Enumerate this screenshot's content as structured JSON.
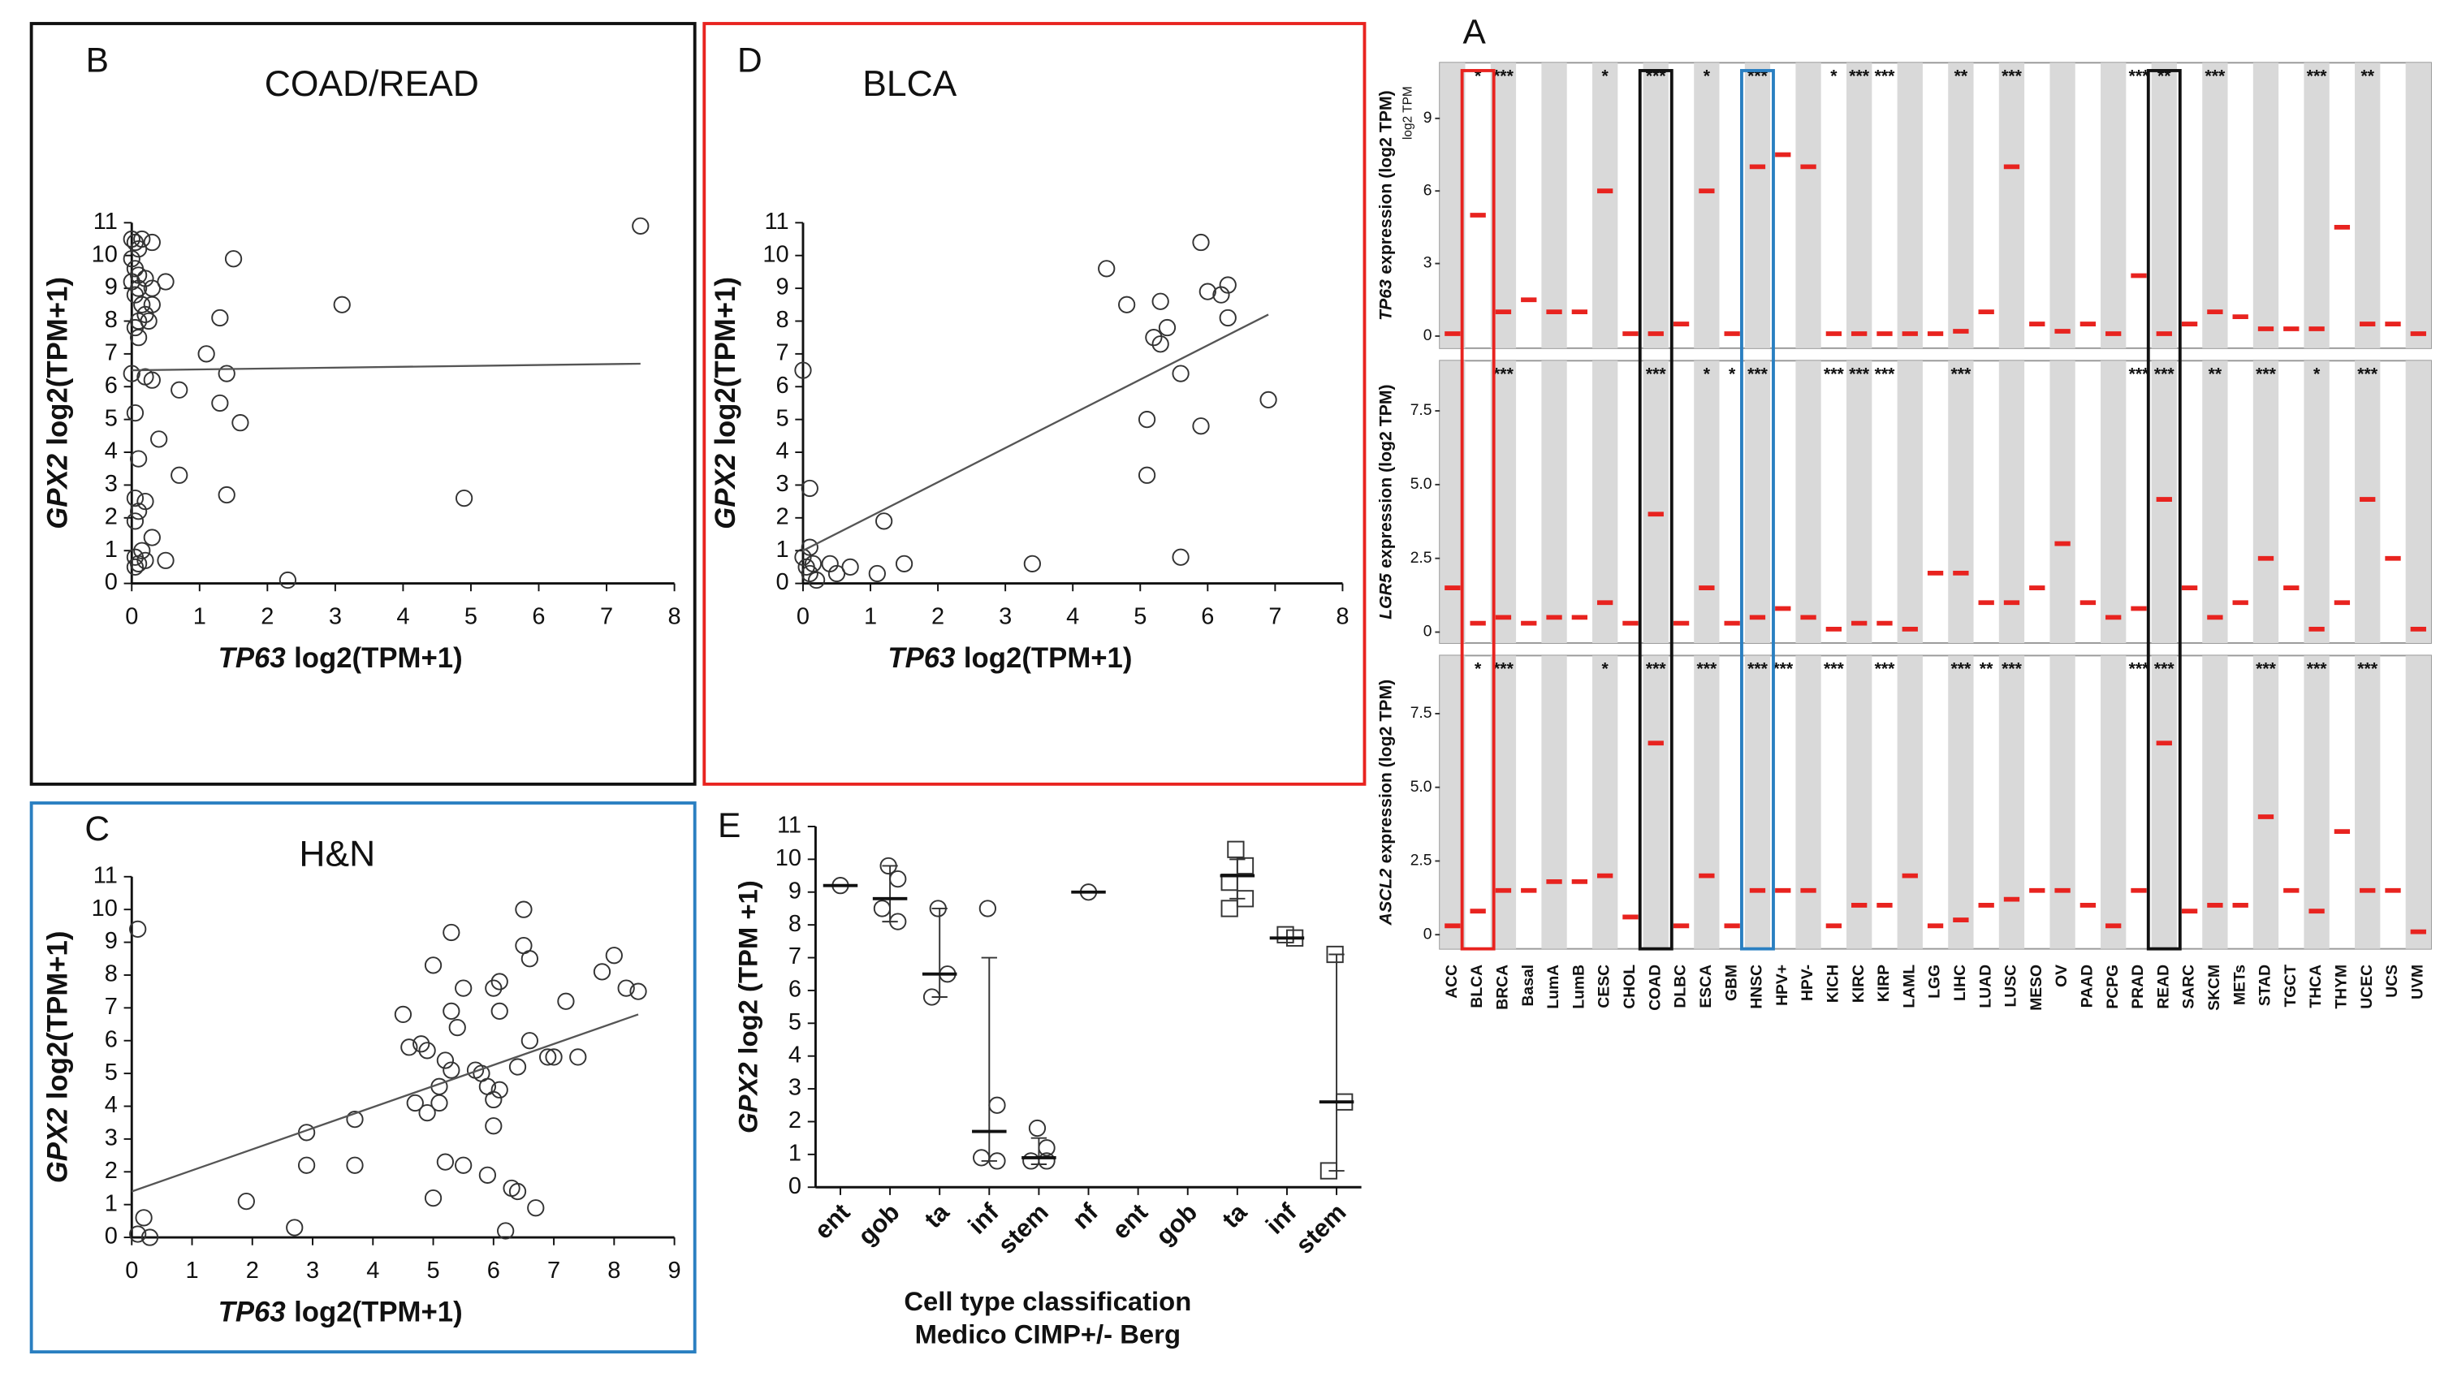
{
  "chart_data": [
    {
      "type": "box",
      "panel": "A",
      "categories": [
        "ACC",
        "BLCA",
        "BRCA",
        "Basal",
        "LumA",
        "LumB",
        "CESC",
        "CHOL",
        "COAD",
        "DLBC",
        "ESCA",
        "GBM",
        "HNSC",
        "HPV+",
        "HPV-",
        "KICH",
        "KIRC",
        "KIRP",
        "LAML",
        "LGG",
        "LIHC",
        "LUAD",
        "LUSC",
        "MESO",
        "OV",
        "PAAD",
        "PCPG",
        "PRAD",
        "READ",
        "SARC",
        "SKCM",
        "METs",
        "STAD",
        "TGCT",
        "THCA",
        "THYM",
        "UCEC",
        "UCS",
        "UVM"
      ],
      "color": "#e8231f",
      "rows": [
        {
          "ylabel_gene": "TP63",
          "ylabel": "expression (log2 TPM)",
          "unit_note": "log2 TPM",
          "ylim": [
            -0.5,
            11.3
          ],
          "yticks": [
            0,
            3,
            6,
            9
          ],
          "medians": [
            0.1,
            5,
            1,
            1.5,
            1,
            1,
            6,
            0.1,
            0.1,
            0.5,
            6,
            0.1,
            7,
            7.5,
            7,
            0.1,
            0.1,
            0.1,
            0.1,
            0.1,
            0.2,
            1,
            7,
            0.5,
            0.2,
            0.5,
            0.1,
            2.5,
            0.1,
            0.5,
            1,
            0.8,
            0.3,
            0.3,
            0.3,
            4.5,
            0.5,
            0.5,
            0.1
          ],
          "stars": [
            null,
            "*",
            "***",
            null,
            null,
            null,
            "*",
            null,
            "***",
            null,
            "*",
            null,
            "***",
            null,
            null,
            "*",
            "***",
            "***",
            null,
            null,
            "**",
            null,
            "***",
            null,
            null,
            null,
            null,
            "***",
            "**",
            null,
            "***",
            null,
            null,
            null,
            "***",
            null,
            "**",
            null,
            null
          ]
        },
        {
          "ylabel_gene": "LGR5",
          "ylabel": "expression (log2 TPM)",
          "ylim": [
            -0.37,
            9.2
          ],
          "yticks": [
            0,
            2.5,
            {
              "value": 5,
              "label": "5.0"
            },
            7.5
          ],
          "medians": [
            1.5,
            0.3,
            0.5,
            0.3,
            0.5,
            0.5,
            1,
            0.3,
            4,
            0.3,
            1.5,
            0.3,
            0.5,
            0.8,
            0.5,
            0.1,
            0.3,
            0.3,
            0.1,
            2,
            2,
            1,
            1,
            1.5,
            3,
            1,
            0.5,
            0.8,
            4.5,
            1.5,
            0.5,
            1,
            2.5,
            1.5,
            0.1,
            1,
            4.5,
            2.5,
            0.1
          ],
          "stars": [
            null,
            null,
            "***",
            null,
            null,
            null,
            null,
            null,
            "***",
            null,
            "*",
            "*",
            "***",
            null,
            null,
            "***",
            "***",
            "***",
            null,
            null,
            "***",
            null,
            null,
            null,
            null,
            null,
            null,
            "***",
            "***",
            null,
            "**",
            null,
            "***",
            null,
            "*",
            null,
            "***",
            null,
            null
          ]
        },
        {
          "ylabel_gene": "ASCL2",
          "ylabel": "expression (log2 TPM)",
          "ylim": [
            -0.48,
            9.47
          ],
          "yticks": [
            0,
            2.5,
            {
              "value": 5,
              "label": "5.0"
            },
            7.5
          ],
          "medians": [
            0.3,
            0.8,
            1.5,
            1.5,
            1.8,
            1.8,
            2,
            0.6,
            6.5,
            0.3,
            2,
            0.3,
            1.5,
            1.5,
            1.5,
            0.3,
            1,
            1,
            2,
            0.3,
            0.5,
            1,
            1.2,
            1.5,
            1.5,
            1,
            0.3,
            1.5,
            6.5,
            0.8,
            1,
            1,
            4,
            1.5,
            0.8,
            3.5,
            1.5,
            1.5,
            0.1
          ],
          "stars": [
            null,
            "*",
            "***",
            null,
            null,
            null,
            "*",
            null,
            "***",
            null,
            "***",
            null,
            "***",
            "***",
            null,
            "***",
            null,
            "***",
            null,
            null,
            "***",
            "**",
            "***",
            null,
            null,
            null,
            null,
            "***",
            "***",
            null,
            null,
            null,
            "***",
            null,
            "***",
            null,
            "***",
            null,
            null
          ]
        }
      ]
    },
    {
      "type": "scatter",
      "panel": "B",
      "title": "COAD/READ",
      "frame": "#111111",
      "xlabel_gene": "TP63",
      "xlabel": "log2(TPM+1)",
      "ylabel_gene": "GPX2",
      "ylabel": "log2(TPM+1)",
      "x": [
        0,
        0.05,
        0.1,
        0.15,
        0.3,
        0,
        0.05,
        0.1,
        0,
        0.1,
        0.2,
        0.05,
        0.15,
        0.3,
        0.2,
        0.1,
        0.25,
        0.5,
        0.3,
        0.05,
        0.1,
        0,
        0.2,
        0.3,
        0.05,
        0.4,
        0.1,
        0.05,
        0.2,
        0.1,
        0.05,
        0.3,
        0.15,
        0.05,
        0.1,
        0.05,
        0.2,
        0.5,
        0.7,
        0.7,
        1.1,
        1.3,
        1.3,
        1.4,
        1.4,
        1.5,
        1.6,
        2.3,
        3.1,
        4.9,
        7.5
      ],
      "y": [
        10.5,
        10.4,
        10.2,
        10.5,
        10.4,
        9.9,
        9.6,
        9.4,
        9.2,
        9.0,
        9.3,
        8.8,
        8.5,
        8.5,
        8.2,
        8.0,
        8.0,
        9.2,
        9.0,
        7.8,
        7.5,
        6.4,
        6.3,
        6.2,
        5.2,
        4.4,
        3.8,
        2.6,
        2.5,
        2.2,
        1.9,
        1.4,
        1.0,
        0.8,
        0.6,
        0.5,
        0.7,
        0.7,
        5.9,
        3.3,
        7.0,
        8.1,
        5.5,
        6.4,
        2.7,
        9.9,
        4.9,
        0.1,
        8.5,
        2.6,
        10.9
      ],
      "trend": {
        "x": [
          0,
          7.5
        ],
        "y": [
          6.5,
          6.7
        ]
      },
      "xlim": [
        0,
        8
      ],
      "ylim": [
        0,
        11
      ],
      "xticks": [
        0,
        1,
        2,
        3,
        4,
        5,
        6,
        7,
        8
      ],
      "yticks": [
        0,
        1,
        2,
        3,
        4,
        5,
        6,
        7,
        8,
        9,
        10,
        11
      ]
    },
    {
      "type": "scatter",
      "panel": "D",
      "title": "BLCA",
      "frame": "#e8231f",
      "xlabel_gene": "TP63",
      "xlabel": "log2(TPM+1)",
      "ylabel_gene": "GPX2",
      "ylabel": "log2(TPM+1)",
      "x": [
        0,
        0.1,
        0.1,
        0,
        0.05,
        0.1,
        0.2,
        0.15,
        0.4,
        0.5,
        0.7,
        1.1,
        1.2,
        1.5,
        3.4,
        4.5,
        4.8,
        5.1,
        5.1,
        5.2,
        5.3,
        5.3,
        5.4,
        5.6,
        5.6,
        5.9,
        5.9,
        6.0,
        6.2,
        6.3,
        6.3,
        6.9
      ],
      "y": [
        6.5,
        2.9,
        1.1,
        0.8,
        0.5,
        0.3,
        0.1,
        0.6,
        0.6,
        0.3,
        0.5,
        0.3,
        1.9,
        0.6,
        0.6,
        9.6,
        8.5,
        5.0,
        3.3,
        7.5,
        7.3,
        8.6,
        7.8,
        6.4,
        0.8,
        4.8,
        10.4,
        8.9,
        8.8,
        8.1,
        9.1,
        5.6
      ],
      "trend": {
        "x": [
          0,
          6.9
        ],
        "y": [
          1.0,
          8.2
        ]
      },
      "xlim": [
        0,
        8
      ],
      "ylim": [
        0,
        11
      ],
      "xticks": [
        0,
        1,
        2,
        3,
        4,
        5,
        6,
        7,
        8
      ],
      "yticks": [
        0,
        1,
        2,
        3,
        4,
        5,
        6,
        7,
        8,
        9,
        10,
        11
      ]
    },
    {
      "type": "scatter",
      "panel": "C",
      "title": "H&N",
      "frame": "#2a7fc1",
      "xlabel_gene": "TP63",
      "xlabel": "log2(TPM+1)",
      "ylabel_gene": "GPX2",
      "ylabel": "log2(TPM+1)",
      "x": [
        0.1,
        0.2,
        0.3,
        0.1,
        1.9,
        2.7,
        2.9,
        2.9,
        3.7,
        3.7,
        4.5,
        4.6,
        4.7,
        4.8,
        4.9,
        4.9,
        5.0,
        5.0,
        5.1,
        5.1,
        5.2,
        5.2,
        5.3,
        5.3,
        5.3,
        5.4,
        5.5,
        5.5,
        5.7,
        5.8,
        5.9,
        5.9,
        6.0,
        6.0,
        6.0,
        6.1,
        6.1,
        6.1,
        6.2,
        6.3,
        6.4,
        6.4,
        6.5,
        6.5,
        6.6,
        6.6,
        6.7,
        6.9,
        7.0,
        7.2,
        7.4,
        7.8,
        8.0,
        8.2,
        8.4
      ],
      "y": [
        9.4,
        0.6,
        0.0,
        0.1,
        1.1,
        0.3,
        3.2,
        2.2,
        3.6,
        2.2,
        6.8,
        5.8,
        4.1,
        5.9,
        5.7,
        3.8,
        8.3,
        1.2,
        4.1,
        4.6,
        5.4,
        2.3,
        9.3,
        6.9,
        5.1,
        6.4,
        2.2,
        7.6,
        5.1,
        5.0,
        4.6,
        1.9,
        7.6,
        3.4,
        4.2,
        7.8,
        6.9,
        4.5,
        0.2,
        1.5,
        1.4,
        5.2,
        8.9,
        10.0,
        8.5,
        6.0,
        0.9,
        5.5,
        5.5,
        7.2,
        5.5,
        8.1,
        8.6,
        7.6,
        7.5
      ],
      "trend": {
        "x": [
          0,
          8.4
        ],
        "y": [
          1.4,
          6.8
        ]
      },
      "xlim": [
        0,
        9
      ],
      "ylim": [
        0,
        11
      ],
      "xticks": [
        0,
        1,
        2,
        3,
        4,
        5,
        6,
        7,
        8,
        9
      ],
      "yticks": [
        0,
        1,
        2,
        3,
        4,
        5,
        6,
        7,
        8,
        9,
        10,
        11
      ]
    },
    {
      "type": "dotplot",
      "panel": "E",
      "ylabel_gene": "GPX2",
      "ylabel": "log2 (TPM +1)",
      "xlabel": [
        "Cell type classification",
        "Medico CIMP+/- Berg"
      ],
      "categories": [
        "ent",
        "gob",
        "ta",
        "inf",
        "stem",
        "nf",
        "ent",
        "gob",
        "ta",
        "inf",
        "stem"
      ],
      "groups": [
        {
          "points": [
            9.2
          ],
          "center": 9.2,
          "marker": "circle"
        },
        {
          "points": [
            9.8,
            9.4,
            8.5,
            8.1
          ],
          "center": 8.8,
          "low": 8.1,
          "high": 9.8,
          "marker": "circle"
        },
        {
          "points": [
            8.5,
            6.5,
            5.8
          ],
          "center": 6.5,
          "low": 5.8,
          "high": 8.5,
          "marker": "circle"
        },
        {
          "points": [
            8.5,
            2.5,
            0.9,
            0.8
          ],
          "center": 1.7,
          "low": 0.8,
          "high": 7.0,
          "marker": "circle"
        },
        {
          "points": [
            1.8,
            1.2,
            0.8,
            0.8
          ],
          "center": 0.9,
          "low": 0.7,
          "high": 1.5,
          "marker": "circle"
        },
        {
          "points": [
            9.0
          ],
          "center": 9.0,
          "marker": "circle"
        },
        {
          "points": [],
          "marker": "circle"
        },
        {
          "points": [],
          "marker": "circle"
        },
        {
          "points": [
            10.3,
            9.8,
            9.3,
            8.8,
            8.5
          ],
          "center": 9.5,
          "low": 8.8,
          "high": 10.0,
          "marker": "square"
        },
        {
          "points": [
            7.7,
            7.6
          ],
          "center": 7.6,
          "marker": "square"
        },
        {
          "points": [
            7.1,
            2.6,
            0.5
          ],
          "center": 2.6,
          "low": 0.5,
          "high": 7.1,
          "marker": "square"
        }
      ],
      "ylim": [
        0,
        11
      ],
      "yticks": [
        0,
        1,
        2,
        3,
        4,
        5,
        6,
        7,
        8,
        9,
        10,
        11
      ]
    }
  ]
}
